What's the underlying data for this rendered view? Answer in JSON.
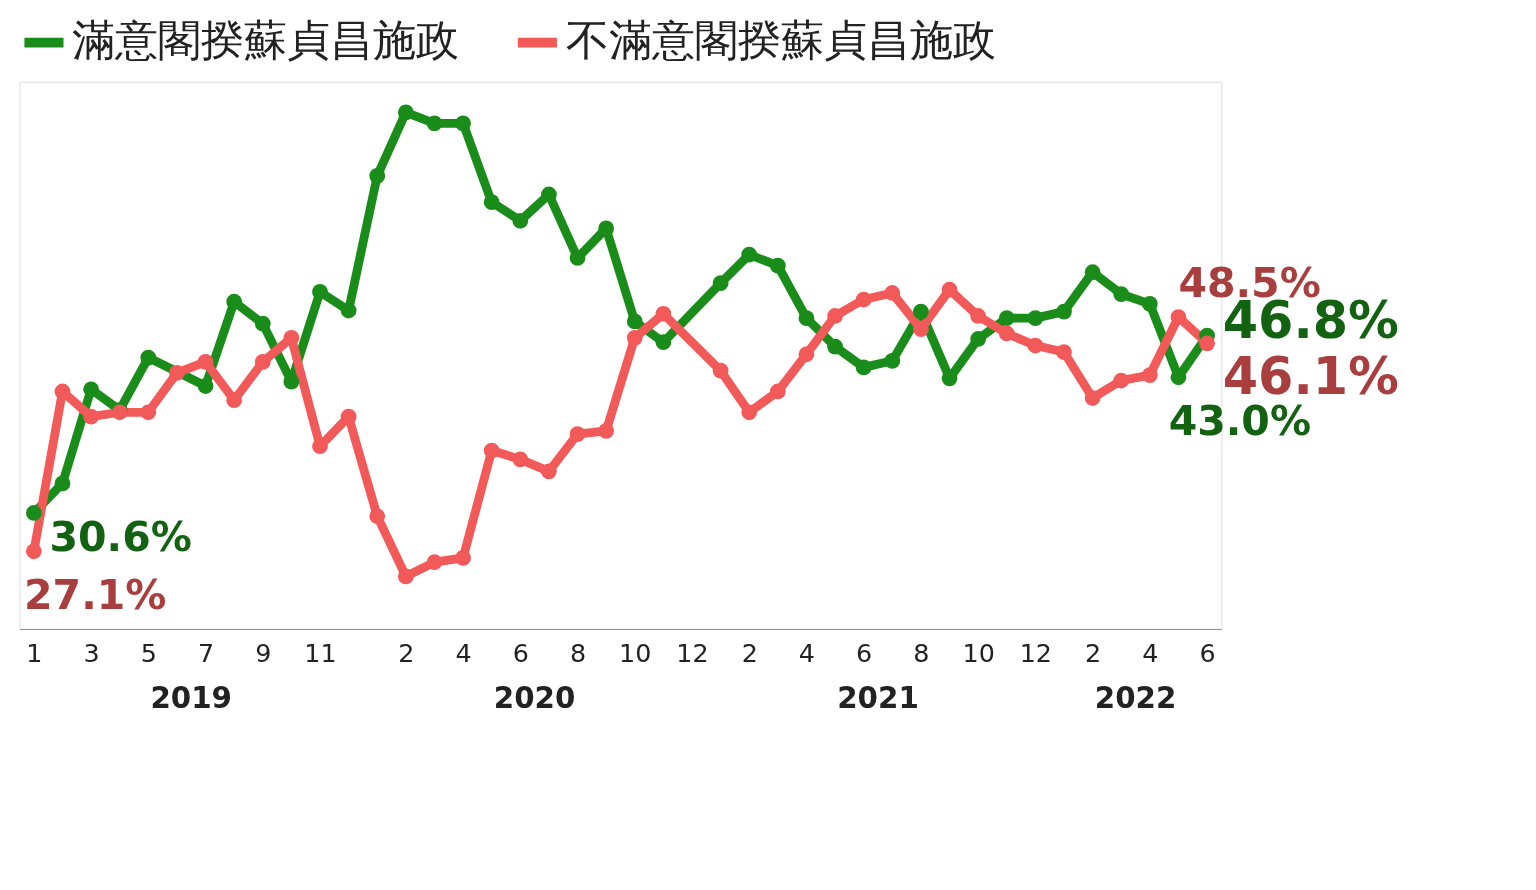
{
  "chart_data": {
    "type": "line",
    "categories": [
      "1",
      null,
      "3",
      null,
      "5",
      null,
      "7",
      null,
      "9",
      null,
      "11",
      null,
      null,
      "2",
      null,
      "4",
      null,
      "6",
      null,
      "8",
      null,
      "10",
      null,
      "12",
      null,
      "2",
      null,
      "4",
      null,
      "6",
      null,
      "8",
      null,
      "10",
      null,
      "12",
      null,
      "2",
      null,
      "4",
      null,
      "6"
    ],
    "series": [
      {
        "name": "滿意閣揆蘇貞昌施政",
        "color": "#1a8c1a",
        "values": [
          30.6,
          33.3,
          41.9,
          40.0,
          44.8,
          null,
          42.2,
          49.9,
          47.9,
          42.6,
          50.8,
          49.1,
          61.4,
          67.2,
          66.2,
          66.2,
          59.0,
          57.3,
          59.7,
          53.9,
          56.6,
          48.1,
          46.2,
          null,
          51.6,
          54.2,
          53.2,
          48.4,
          45.8,
          43.9,
          44.5,
          49.0,
          42.9,
          46.5,
          48.4,
          48.4,
          49.0,
          52.6,
          50.6,
          49.7,
          43.0,
          46.8
        ],
        "value_labels": [
          "30.6%",
          null,
          null,
          null,
          null,
          null,
          null,
          null,
          null,
          null,
          null,
          null,
          null,
          null,
          null,
          null,
          null,
          null,
          null,
          null,
          null,
          null,
          null,
          null,
          null,
          null,
          null,
          null,
          null,
          null,
          null,
          null,
          null,
          null,
          null,
          null,
          null,
          null,
          null,
          null,
          "43.0%",
          "46.8%"
        ]
      },
      {
        "name": "不滿意閣揆蘇貞昌施政",
        "color": "#f25a5a",
        "values": [
          27.1,
          41.7,
          39.4,
          39.8,
          39.8,
          43.4,
          44.4,
          40.9,
          44.4,
          46.6,
          36.7,
          39.4,
          30.3,
          24.8,
          26.1,
          26.5,
          36.3,
          35.5,
          34.4,
          37.8,
          38.1,
          46.6,
          48.8,
          null,
          43.6,
          39.8,
          41.7,
          45.1,
          48.6,
          50.1,
          50.7,
          47.4,
          51.0,
          48.6,
          47.0,
          45.9,
          45.3,
          41.1,
          42.7,
          43.2,
          48.5,
          46.1
        ],
        "value_labels": [
          "27.1%",
          null,
          null,
          null,
          null,
          null,
          null,
          null,
          null,
          null,
          null,
          null,
          null,
          null,
          null,
          null,
          null,
          null,
          null,
          null,
          null,
          null,
          null,
          null,
          null,
          null,
          null,
          null,
          null,
          null,
          null,
          null,
          null,
          null,
          null,
          null,
          null,
          null,
          null,
          null,
          "48.5%",
          "46.1%"
        ]
      }
    ],
    "annotations": [
      "2019",
      "2020",
      "2021",
      "2022"
    ],
    "ylim": [
      20,
      70
    ],
    "tick_labels": "x",
    "grid": false,
    "legend": "top",
    "marker": "circle",
    "line_style": "solid"
  }
}
